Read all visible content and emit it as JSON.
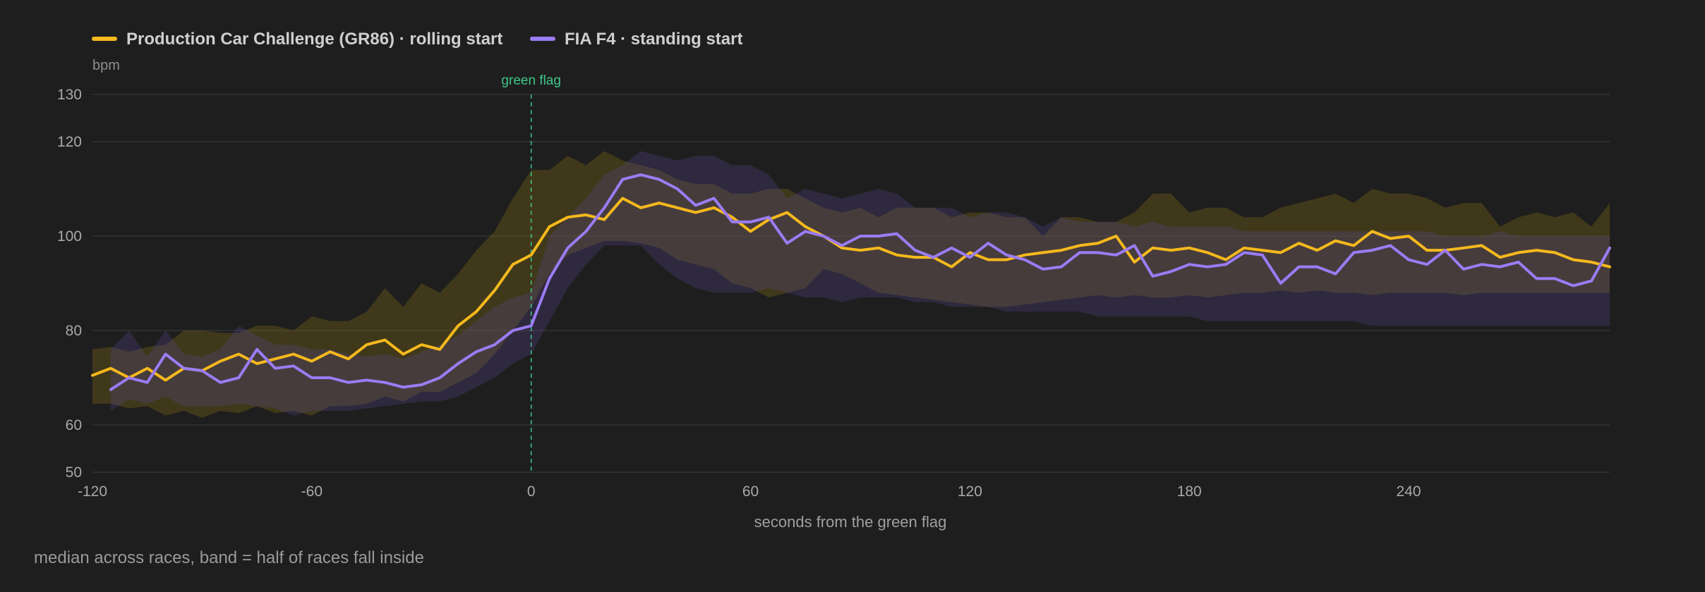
{
  "chart_data": {
    "type": "line",
    "ylabel": "bpm",
    "xlabel": "seconds from the green flag",
    "xlim": [
      -120,
      295
    ],
    "ylim": [
      50,
      130
    ],
    "x_ticks": [
      -120,
      -60,
      0,
      60,
      120,
      180,
      240
    ],
    "y_ticks": [
      50,
      60,
      80,
      100,
      120,
      130
    ],
    "grid": true,
    "legend_position": "top-left",
    "annotation": {
      "x": 0,
      "label": "green flag",
      "color": "#3ec58a"
    },
    "note": "median across races, band = half of races fall inside",
    "series": [
      {
        "name": "Production Car Challenge (GR86) · rolling start",
        "color": "#f5b91d",
        "x": [
          -120,
          -115,
          -110,
          -105,
          -100,
          -95,
          -90,
          -85,
          -80,
          -75,
          -70,
          -65,
          -60,
          -55,
          -50,
          -45,
          -40,
          -35,
          -30,
          -25,
          -20,
          -15,
          -10,
          -5,
          0,
          5,
          10,
          15,
          20,
          25,
          30,
          35,
          40,
          45,
          50,
          55,
          60,
          65,
          70,
          75,
          80,
          85,
          90,
          95,
          100,
          105,
          110,
          115,
          120,
          125,
          130,
          135,
          140,
          145,
          150,
          155,
          160,
          165,
          170,
          175,
          180,
          185,
          190,
          195,
          200,
          205,
          210,
          215,
          220,
          225,
          230,
          235,
          240,
          245,
          250,
          255,
          260,
          265,
          270,
          275,
          280,
          285,
          290,
          295
        ],
        "median": [
          70.5,
          72,
          70,
          72,
          69.5,
          72,
          71.5,
          73.5,
          75,
          73,
          74,
          75,
          73.5,
          75.5,
          74,
          77,
          78,
          75,
          77,
          76,
          81,
          84,
          88.5,
          94,
          96,
          102,
          104,
          104.5,
          103.5,
          108,
          106,
          107,
          106,
          105,
          106,
          104,
          101,
          103.5,
          105,
          102,
          100,
          97.5,
          97,
          97.5,
          96,
          95.5,
          95.5,
          93.5,
          96.5,
          95,
          95,
          96,
          96.5,
          97,
          98,
          98.5,
          100,
          94.5,
          97.5,
          97,
          97.5,
          96.5,
          95,
          97.5,
          97,
          96.5,
          98.5,
          97,
          99,
          98,
          101,
          99.5,
          100,
          97,
          97,
          97.5,
          98,
          95.5,
          96.5,
          97,
          96.5,
          95,
          94.5,
          93.5
        ],
        "q1": [
          64.5,
          64.5,
          63.5,
          64,
          62,
          63,
          61.5,
          63,
          62.5,
          64,
          62.5,
          63,
          62,
          64,
          64,
          64.5,
          66,
          65,
          67,
          67,
          69,
          71,
          75,
          80,
          85,
          92,
          96,
          97.5,
          99,
          99,
          98.5,
          97.5,
          95,
          94,
          93,
          90,
          89,
          87,
          88,
          89,
          93,
          92,
          90,
          88,
          87.5,
          87,
          86.5,
          86,
          85.5,
          85,
          85,
          85.5,
          86,
          86.5,
          87,
          87.5,
          87,
          87.5,
          87,
          87,
          87.5,
          87,
          87.5,
          88,
          88,
          88.5,
          88,
          88.5,
          88,
          88,
          87.5,
          88,
          88,
          88,
          88,
          87.5,
          88,
          88,
          88,
          88,
          88,
          88,
          88,
          88
        ],
        "q3": [
          76,
          76.5,
          75.5,
          76.5,
          77,
          80,
          80,
          79.5,
          79.5,
          81,
          81,
          80,
          83,
          82,
          82,
          84,
          89,
          85,
          90,
          88,
          92,
          97,
          101,
          108,
          114,
          114,
          117,
          115,
          118,
          116,
          115,
          114,
          112,
          111,
          111,
          109,
          109,
          110,
          110,
          108,
          106,
          105,
          106,
          104,
          106,
          106,
          106,
          104,
          105,
          105,
          104,
          104,
          100,
          104,
          104,
          103,
          103,
          105,
          109,
          109,
          105,
          106,
          106,
          104,
          104,
          106,
          107,
          108,
          109,
          107,
          110,
          109,
          109,
          108,
          106,
          107,
          107,
          102,
          104,
          105,
          104,
          105,
          102,
          107
        ]
      },
      {
        "name": "FIA F4 · standing start",
        "color": "#9b7cf4",
        "x": [
          -115,
          -110,
          -105,
          -100,
          -95,
          -90,
          -85,
          -80,
          -75,
          -70,
          -65,
          -60,
          -55,
          -50,
          -45,
          -40,
          -35,
          -30,
          -25,
          -20,
          -15,
          -10,
          -5,
          0,
          5,
          10,
          15,
          20,
          25,
          30,
          35,
          40,
          45,
          50,
          55,
          60,
          65,
          70,
          75,
          80,
          85,
          90,
          95,
          100,
          105,
          110,
          115,
          120,
          125,
          130,
          135,
          140,
          145,
          150,
          155,
          160,
          165,
          170,
          175,
          180,
          185,
          190,
          195,
          200,
          205,
          210,
          215,
          220,
          225,
          230,
          235,
          240,
          245,
          250,
          255,
          260,
          265,
          270,
          275,
          280,
          285,
          290,
          295
        ],
        "median": [
          67.5,
          70,
          69,
          75,
          72,
          71.5,
          69,
          70,
          76,
          72,
          72.5,
          70,
          70,
          69,
          69.5,
          69,
          68,
          68.5,
          70,
          73,
          75.5,
          77,
          80,
          81,
          91,
          97.5,
          101,
          106,
          112,
          113,
          112,
          110,
          106.5,
          108,
          103,
          103,
          104,
          98.5,
          101,
          100,
          98,
          100,
          100,
          100.5,
          97,
          95.5,
          97.5,
          95.5,
          98.5,
          96,
          95,
          93,
          93.5,
          96.5,
          96.5,
          96,
          98,
          91.5,
          92.5,
          94,
          93.5,
          94,
          96.5,
          96,
          90,
          93.5,
          93.5,
          92,
          96.5,
          97,
          98,
          95,
          94,
          97,
          93,
          94,
          93.5,
          94.5,
          91,
          91,
          89.5,
          90.5,
          97.5
        ],
        "q1": [
          63,
          65.5,
          64.5,
          66,
          64,
          64,
          64,
          64.5,
          64,
          63.5,
          62,
          63,
          63,
          63,
          63.5,
          64,
          64.5,
          65,
          65,
          66,
          68,
          70,
          73,
          75,
          82,
          89,
          94,
          98,
          98,
          98,
          94,
          91,
          89,
          88,
          88,
          88,
          89,
          88,
          87,
          87,
          86,
          87,
          87,
          87,
          86,
          86,
          85,
          85,
          85,
          84,
          84,
          84,
          84,
          84,
          83,
          83,
          83,
          83,
          83,
          83,
          82,
          82,
          82,
          82,
          82,
          82,
          82,
          82,
          82,
          81,
          81,
          81,
          81,
          81,
          81,
          81,
          81,
          81,
          81,
          81,
          81,
          81,
          81
        ],
        "q3": [
          76,
          80,
          74.5,
          80,
          75,
          74.5,
          76,
          81,
          79,
          77,
          77,
          76,
          76,
          75,
          74.5,
          75,
          74,
          75.5,
          77,
          79,
          82,
          85,
          87,
          88,
          100,
          104,
          108,
          113,
          115,
          118,
          117,
          116,
          117,
          117,
          115,
          115,
          113,
          108,
          110,
          109,
          108,
          109,
          110,
          109,
          106,
          106,
          106,
          104,
          105,
          105,
          104,
          102,
          104,
          103,
          103,
          103,
          102,
          103,
          102,
          102,
          102,
          102,
          101,
          101,
          101,
          101,
          101,
          101,
          101,
          101,
          101,
          101,
          101,
          100,
          100,
          100,
          101,
          100,
          100,
          100,
          100,
          100,
          100
        ]
      }
    ]
  }
}
